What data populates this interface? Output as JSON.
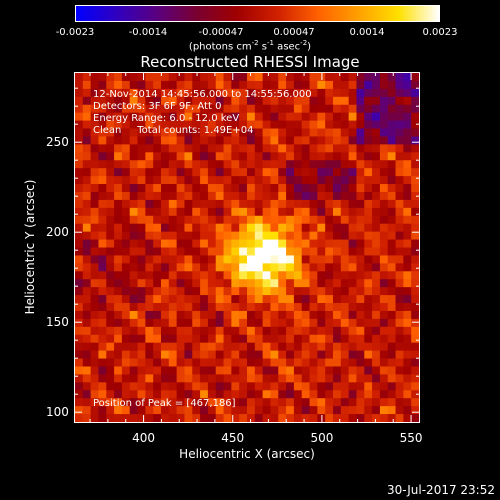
{
  "colorbar": {
    "ticks": [
      "-0.0023",
      "-0.0014",
      "-0.00047",
      "0.00047",
      "0.0014",
      "0.0023"
    ],
    "units": "(photons cm",
    "units_exp1": "-2",
    "units_mid": " s",
    "units_exp2": "-1",
    "units_mid2": " asec",
    "units_exp3": "-2",
    "units_end": ")",
    "gradient_stops": [
      "#0000ff",
      "#3000c0",
      "#5a0080",
      "#7a0030",
      "#a00000",
      "#d02000",
      "#ff6000",
      "#ffa000",
      "#ffe000",
      "#ffffff"
    ]
  },
  "title": "Reconstructed RHESSI Image",
  "info_lines": [
    "12-Nov-2014 14:45:56.000 to 14:55:56.000",
    "Detectors: 3F 6F 9F, Att 0",
    "Energy Range: 6.0 - 12.0 keV",
    "Clean     Total counts: 1.49E+04"
  ],
  "peak_text": "Position of Peak = [467,186]",
  "footer_timestamp": "30-Jul-2017 23:52",
  "chart_data": {
    "type": "heatmap",
    "title": "Reconstructed RHESSI Image",
    "xlabel": "Heliocentric X (arcsec)",
    "ylabel": "Heliocentric Y (arcsec)",
    "xlim": [
      361,
      555
    ],
    "ylim": [
      94,
      289
    ],
    "xticks": [
      400,
      450,
      500,
      550
    ],
    "yticks": [
      100,
      150,
      200,
      250
    ],
    "zlim": [
      -0.0023,
      0.0023
    ],
    "peak": {
      "x": 467,
      "y": 186
    },
    "grid_size": [
      44,
      44
    ]
  }
}
